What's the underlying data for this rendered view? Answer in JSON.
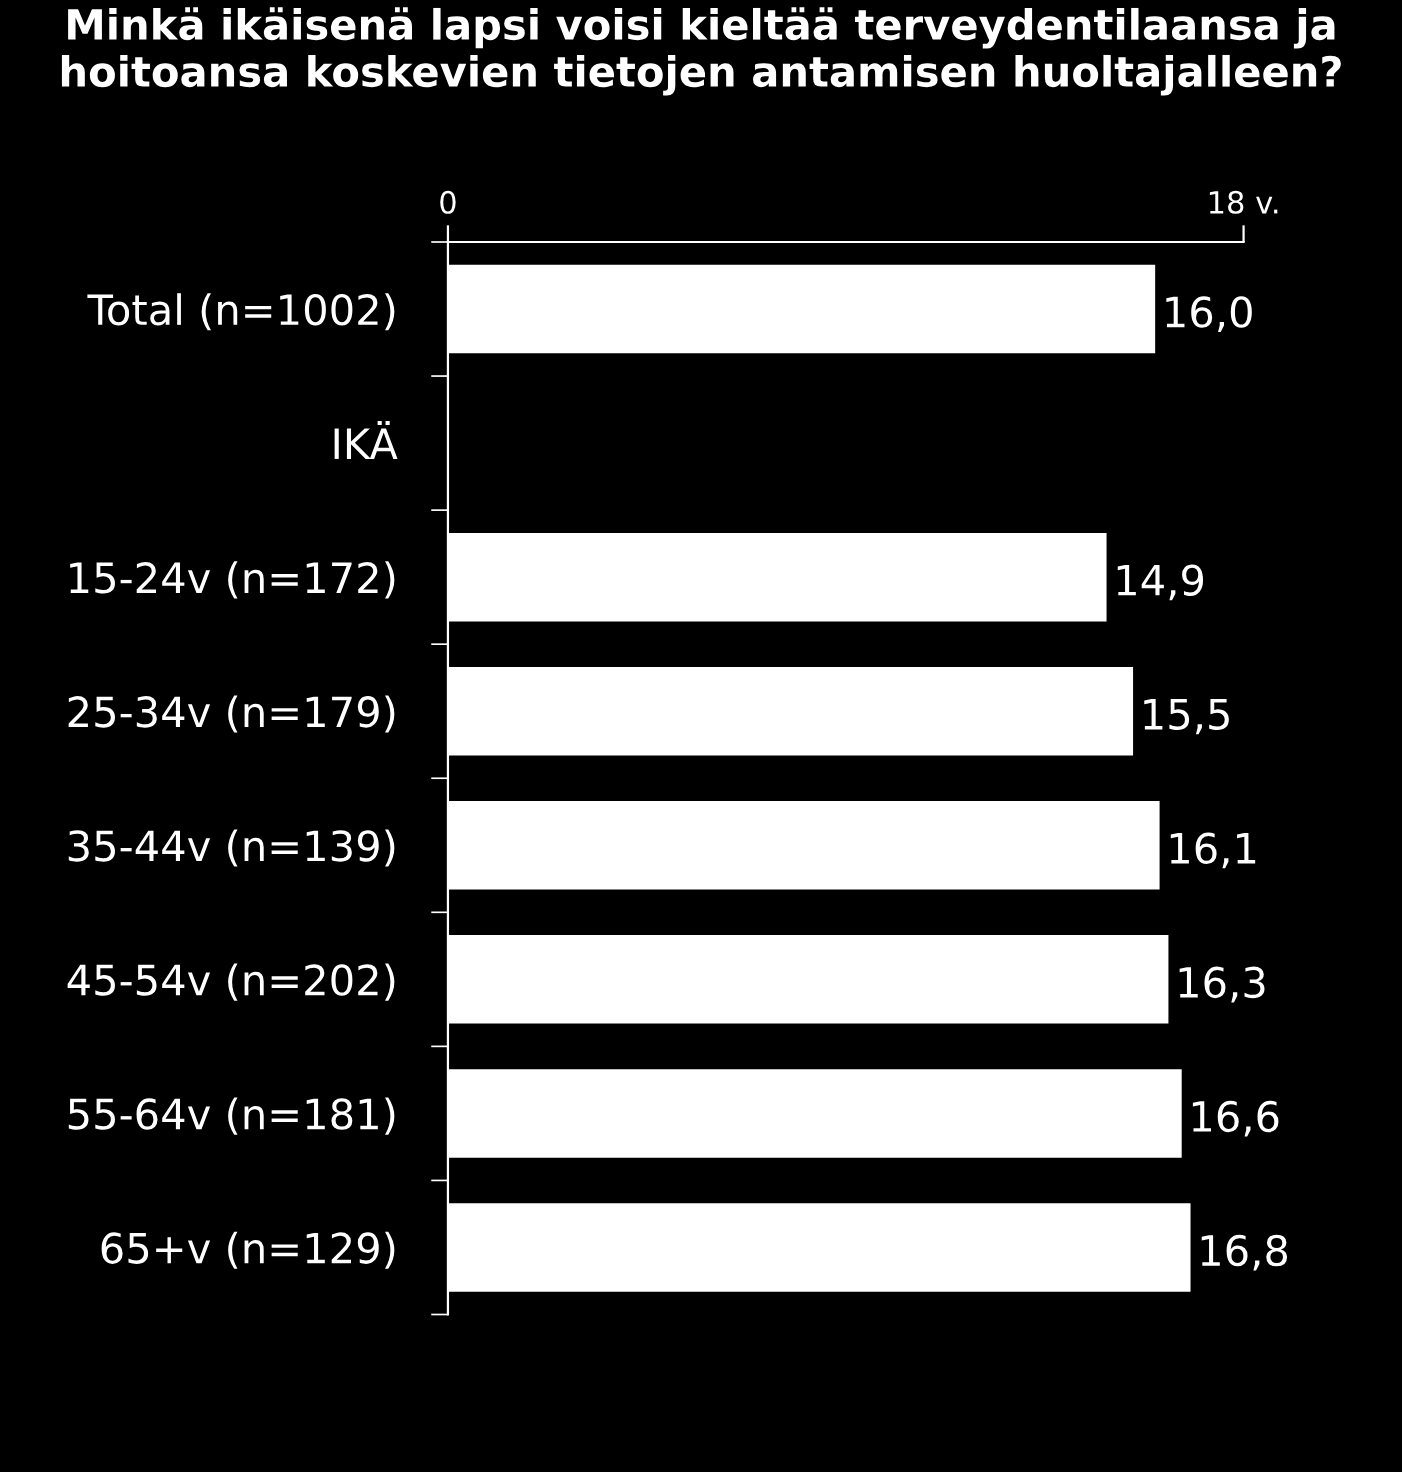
{
  "chart_data": {
    "type": "bar",
    "orientation": "horizontal",
    "title": "Minkä ikäisenä lapsi voisi kieltää terveydentilaansa ja hoitoansa koskevien tietojen antamisen huoltajalleen?",
    "categories": [
      "Total (n=1002)",
      "IKÄ",
      "15-24v (n=172)",
      "25-34v (n=179)",
      "35-44v (n=139)",
      "45-54v (n=202)",
      "55-64v (n=181)",
      "65+v (n=129)"
    ],
    "values": [
      16.0,
      null,
      14.9,
      15.5,
      16.1,
      16.3,
      16.6,
      16.8
    ],
    "value_labels": [
      "16,0",
      null,
      "14,9",
      "15,5",
      "16,1",
      "16,3",
      "16,6",
      "16,8"
    ],
    "color": "#ffffff",
    "xlim": [
      0,
      18
    ],
    "xticks": [
      0,
      {
        "value": 18,
        "label": "18 v."
      }
    ],
    "grid": false,
    "legend": false
  }
}
